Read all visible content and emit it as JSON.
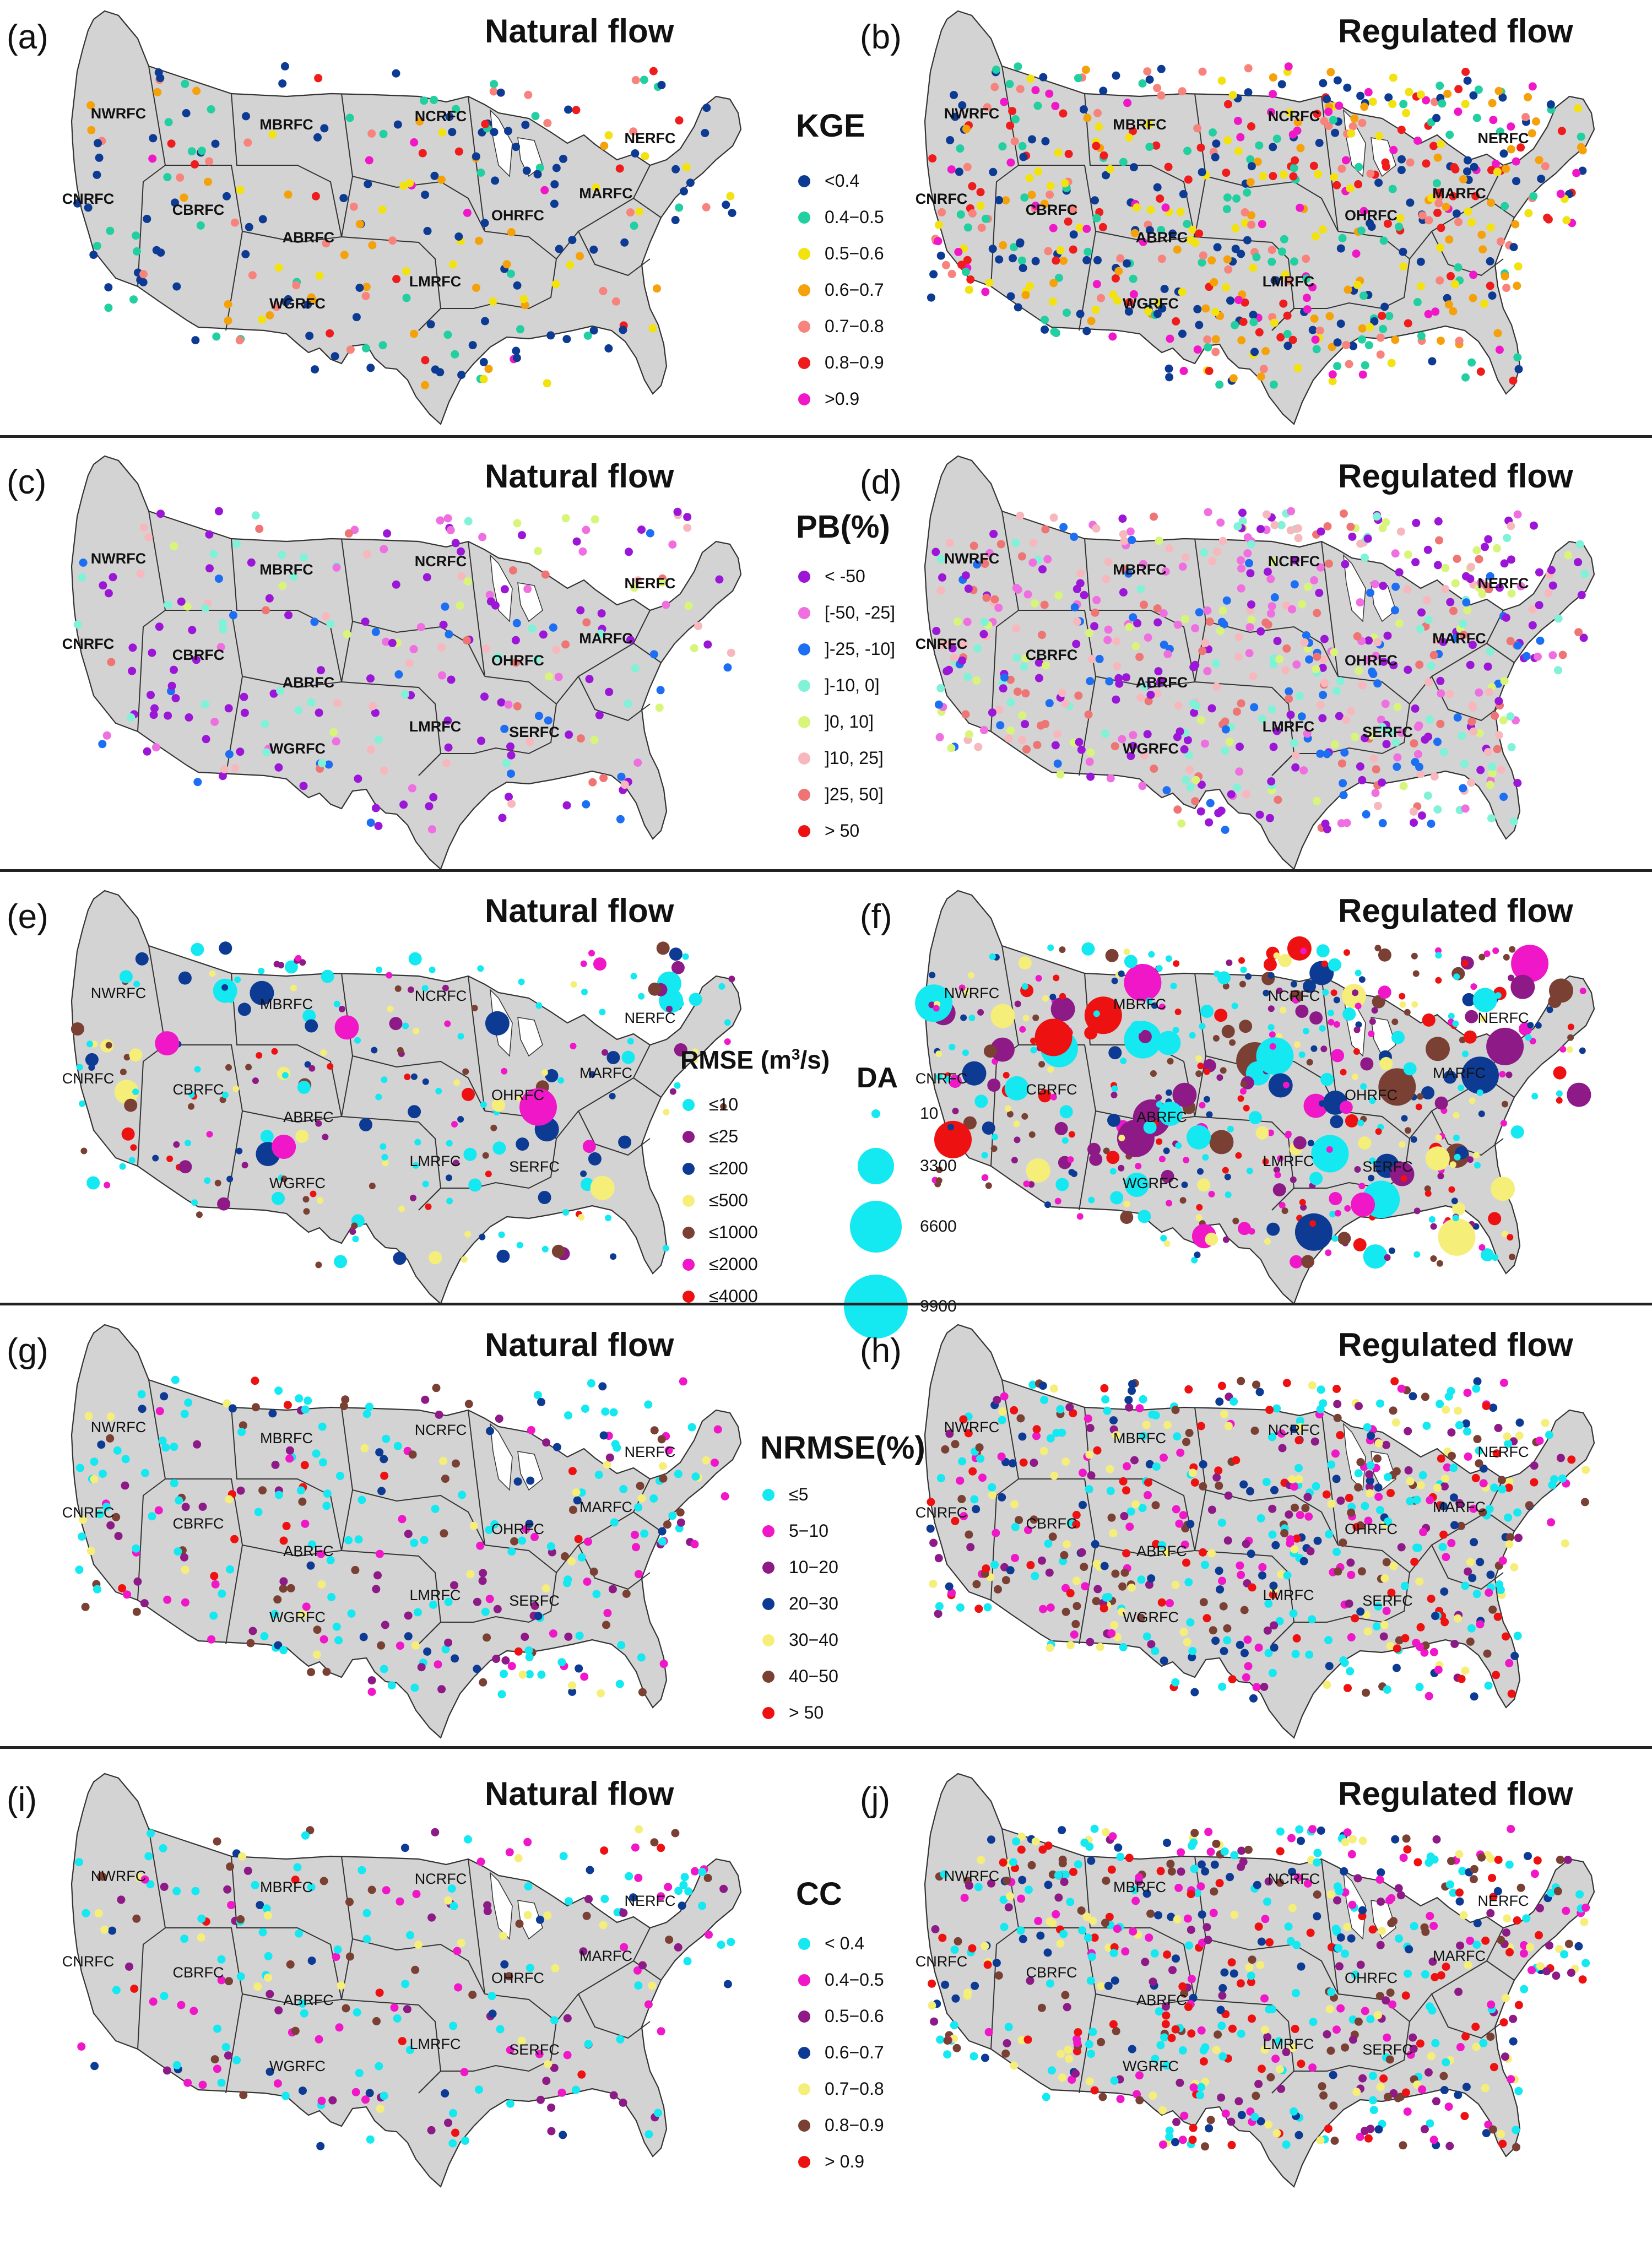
{
  "rows": [
    {
      "id": "kge",
      "left": {
        "label": "(a)",
        "title": "Natural flow",
        "rfc_style": "bold",
        "rfcs": [
          "NWRFC",
          "MBRFC",
          "NCRFC",
          "NERFC",
          "CNRFC",
          "CBRFC",
          "ABRFC",
          "OHRFC",
          "MARFC",
          "WGRFC",
          "LMRFC"
        ]
      },
      "right": {
        "label": "(b)",
        "title": "Regulated flow",
        "rfc_style": "bold",
        "rfcs": [
          "NWRFC",
          "MBRFC",
          "NCRFC",
          "NERFC",
          "CNRFC",
          "CBRFC",
          "ABRFC",
          "OHRFC",
          "MARFC",
          "WGRFC",
          "LMRFC"
        ]
      },
      "legend": {
        "title": "KGE",
        "items": [
          {
            "label": "<0.4",
            "color": "#0d3b94"
          },
          {
            "label": "0.4−0.5",
            "color": "#21cfa0"
          },
          {
            "label": "0.5−0.6",
            "color": "#f2e210"
          },
          {
            "label": "0.6−0.7",
            "color": "#f5a10a"
          },
          {
            "label": "0.7−0.8",
            "color": "#f7837c"
          },
          {
            "label": "0.8−0.9",
            "color": "#ee1c1c"
          },
          {
            "label": ">0.9",
            "color": "#ef17c8"
          }
        ]
      }
    },
    {
      "id": "pb",
      "left": {
        "label": "(c)",
        "title": "Natural flow",
        "rfc_style": "bold",
        "rfcs": [
          "NWRFC",
          "MBRFC",
          "NCRFC",
          "NERFC",
          "CNRFC",
          "CBRFC",
          "ABRFC",
          "OHRFC",
          "MARFC",
          "WGRFC",
          "LMRFC",
          "SERFC"
        ]
      },
      "right": {
        "label": "(d)",
        "title": "Regulated flow",
        "rfc_style": "bold",
        "rfcs": [
          "NWRFC",
          "MBRFC",
          "NCRFC",
          "NERFC",
          "CNRFC",
          "CBRFC",
          "ABRFC",
          "OHRFC",
          "MARFC",
          "WGRFC",
          "LMRFC",
          "SERFC"
        ]
      },
      "legend": {
        "title": "PB(%)",
        "items": [
          {
            "label": "< -50",
            "color": "#9b16d6"
          },
          {
            "label": "[-50, -25]",
            "color": "#f06fe0"
          },
          {
            "label": "]-25, -10]",
            "color": "#1c6ef2"
          },
          {
            "label": "]-10, 0]",
            "color": "#7ff2d7"
          },
          {
            "label": "]0, 10]",
            "color": "#d8f57a"
          },
          {
            "label": "]10, 25]",
            "color": "#f7b8bd"
          },
          {
            "label": "]25, 50]",
            "color": "#ee7574"
          },
          {
            "label": "> 50",
            "color": "#ee1111"
          }
        ]
      }
    },
    {
      "id": "rmse",
      "left": {
        "label": "(e)",
        "title": "Natural flow",
        "rfc_style": "light",
        "rfcs": [
          "NWRFC",
          "MBRFC",
          "NCRFC",
          "NERFC",
          "CNRFC",
          "CBRFC",
          "ABRFC",
          "OHRFC",
          "MARFC",
          "WGRFC",
          "LMRFC",
          "SERFC"
        ]
      },
      "right": {
        "label": "(f)",
        "title": "Regulated flow",
        "rfc_style": "light",
        "rfcs": [
          "NWRFC",
          "MBRFC",
          "NCRFC",
          "NERFC",
          "CNRFC",
          "CBRFC",
          "ABRFC",
          "OHRFC",
          "MARFC",
          "WGRFC",
          "LMRFC",
          "SERFC"
        ]
      },
      "legend": {
        "title_main": "RMSE (m",
        "title_sup": "3",
        "title_tail": "/s)",
        "items": [
          {
            "label": "≤10",
            "color": "#14e8f0"
          },
          {
            "label": "≤25",
            "color": "#8d1a86"
          },
          {
            "label": "≤200",
            "color": "#0d3b94"
          },
          {
            "label": "≤500",
            "color": "#f5ef7a"
          },
          {
            "label": "≤1000",
            "color": "#7a4034"
          },
          {
            "label": "≤2000",
            "color": "#ef17c8"
          },
          {
            "label": "≤4000",
            "color": "#ee1111"
          }
        ],
        "da_title": "DA",
        "da_items": [
          {
            "label": "10",
            "value": 10
          },
          {
            "label": "3300",
            "value": 3300
          },
          {
            "label": "6600",
            "value": 6600
          },
          {
            "label": "9900",
            "value": 9900
          }
        ]
      }
    },
    {
      "id": "nrmse",
      "left": {
        "label": "(g)",
        "title": "Natural flow",
        "rfc_style": "light",
        "rfcs": [
          "NWRFC",
          "MBRFC",
          "NCRFC",
          "NERFC",
          "CNRFC",
          "CBRFC",
          "ABRFC",
          "OHRFC",
          "MARFC",
          "WGRFC",
          "LMRFC",
          "SERFC"
        ]
      },
      "right": {
        "label": "(h)",
        "title": "Regulated flow",
        "rfc_style": "light",
        "rfcs": [
          "NWRFC",
          "MBRFC",
          "NCRFC",
          "NERFC",
          "CNRFC",
          "CBRFC",
          "ABRFC",
          "OHRFC",
          "MARFC",
          "WGRFC",
          "LMRFC",
          "SERFC"
        ]
      },
      "legend": {
        "title": "NRMSE(%)",
        "items": [
          {
            "label": "≤5",
            "color": "#14e8f0"
          },
          {
            "label": "5−10",
            "color": "#ef17c8"
          },
          {
            "label": "10−20",
            "color": "#8d1a86"
          },
          {
            "label": "20−30",
            "color": "#0d3b94"
          },
          {
            "label": "30−40",
            "color": "#f5ef7a"
          },
          {
            "label": "40−50",
            "color": "#7a4034"
          },
          {
            "label": "> 50",
            "color": "#ee1111"
          }
        ]
      }
    },
    {
      "id": "cc",
      "left": {
        "label": "(i)",
        "title": "Natural flow",
        "rfc_style": "light",
        "rfcs": [
          "NWRFC",
          "MBRFC",
          "NCRFC",
          "NERFC",
          "CNRFC",
          "CBRFC",
          "ABRFC",
          "OHRFC",
          "MARFC",
          "WGRFC",
          "LMRFC",
          "SERFC"
        ]
      },
      "right": {
        "label": "(j)",
        "title": "Regulated flow",
        "rfc_style": "light",
        "rfcs": [
          "NWRFC",
          "MBRFC",
          "NCRFC",
          "NERFC",
          "CNRFC",
          "CBRFC",
          "ABRFC",
          "OHRFC",
          "MARFC",
          "WGRFC",
          "LMRFC",
          "SERFC"
        ]
      },
      "legend": {
        "title": "CC",
        "items": [
          {
            "label": "< 0.4",
            "color": "#14e8f0"
          },
          {
            "label": "0.4−0.5",
            "color": "#ef17c8"
          },
          {
            "label": "0.5−0.6",
            "color": "#8d1a86"
          },
          {
            "label": "0.6−0.7",
            "color": "#0d3b94"
          },
          {
            "label": "0.7−0.8",
            "color": "#f5ef7a"
          },
          {
            "label": "0.8−0.9",
            "color": "#7a4034"
          },
          {
            "label": "> 0.9",
            "color": "#ee1111"
          }
        ]
      }
    }
  ]
}
